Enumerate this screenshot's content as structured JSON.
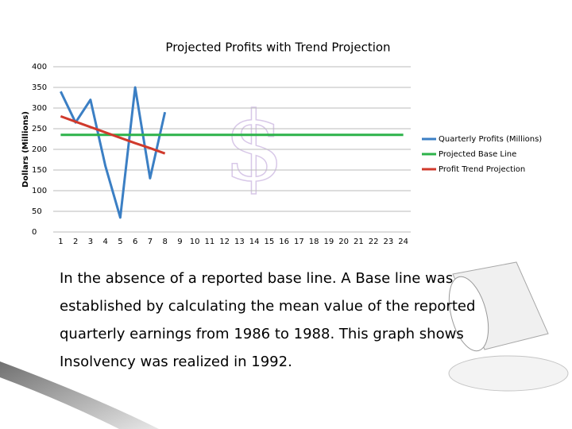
{
  "chart_data": {
    "type": "line",
    "title": "Projected Profits with Trend Projection",
    "y_label": "Dollars (Millions)",
    "categories": [
      1,
      2,
      3,
      4,
      5,
      6,
      7,
      8,
      9,
      10,
      11,
      12,
      13,
      14,
      15,
      16,
      17,
      18,
      19,
      20,
      21,
      22,
      23,
      24
    ],
    "series": [
      {
        "name": "Quarterly Profits (Millions)",
        "color": "#3b7fc4",
        "values": [
          340,
          265,
          320,
          160,
          35,
          350,
          130,
          290,
          null,
          null,
          null,
          null,
          null,
          null,
          null,
          null,
          null,
          null,
          null,
          null,
          null,
          null,
          null,
          null
        ]
      },
      {
        "name": "Projected Base Line",
        "color": "#2db34a",
        "values": [
          235,
          235,
          235,
          235,
          235,
          235,
          235,
          235,
          235,
          235,
          235,
          235,
          235,
          235,
          235,
          235,
          235,
          235,
          235,
          235,
          235,
          235,
          235,
          235
        ]
      },
      {
        "name": "Profit Trend Projection",
        "color": "#d03a2c",
        "values": [
          280,
          267,
          254,
          241,
          228,
          215,
          203,
          190,
          null,
          null,
          null,
          null,
          null,
          null,
          null,
          null,
          null,
          null,
          null,
          null,
          null,
          null,
          null,
          null
        ]
      }
    ],
    "ylim": [
      0,
      400
    ],
    "yticks": [
      0,
      50,
      100,
      150,
      200,
      250,
      300,
      350,
      400
    ],
    "grid": true,
    "legend": "right"
  },
  "text": {
    "lines": [
      "In the absence of a reported base line.  A Base line was",
      "established by calculating the mean value of the reported",
      "quarterly  earnings from 1986 to 1988. This graph shows",
      "Insolvency was realized in 1992."
    ]
  }
}
